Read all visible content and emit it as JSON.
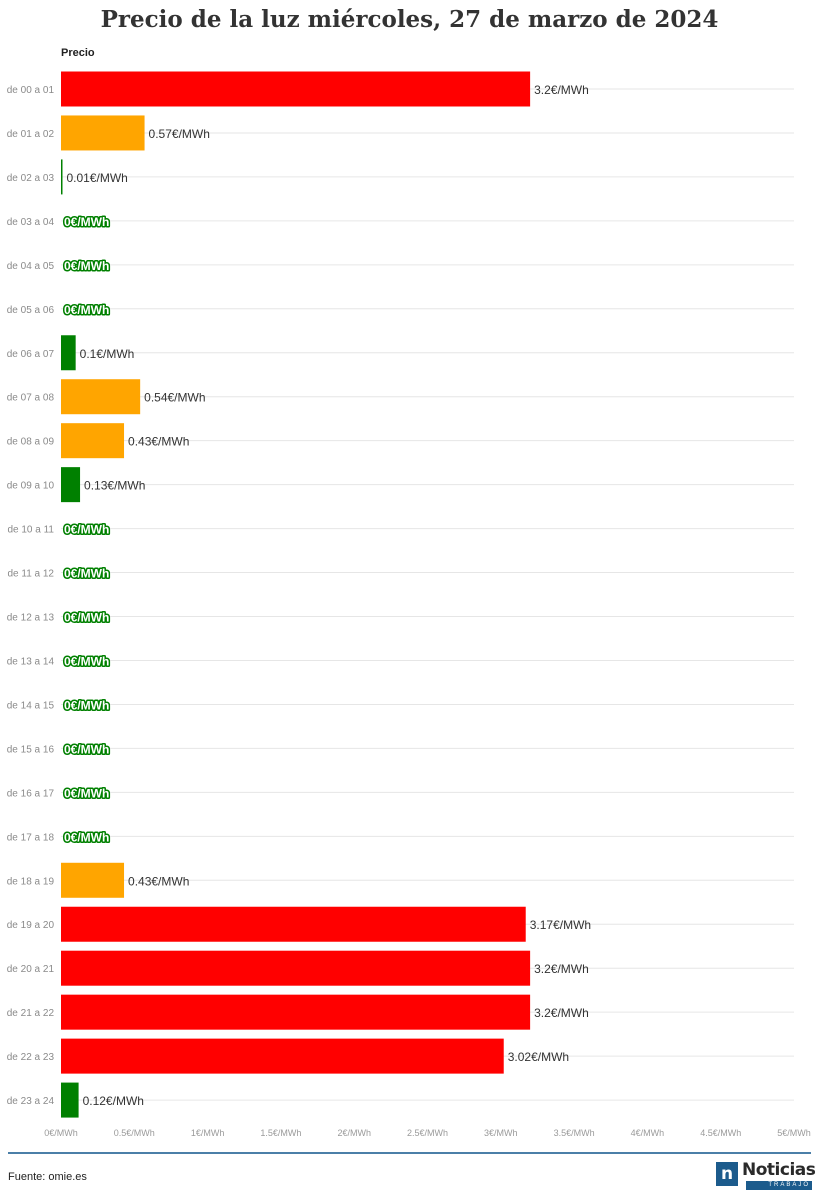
{
  "chart_data": {
    "type": "bar",
    "orientation": "horizontal",
    "title": "Precio de la luz miércoles, 27 de marzo de 2024",
    "series_label": "Precio",
    "unit_suffix": "€/MWh",
    "categories": [
      "de 00 a 01",
      "de 01 a 02",
      "de 02 a 03",
      "de 03 a 04",
      "de 04 a 05",
      "de 05 a 06",
      "de 06 a 07",
      "de 07 a 08",
      "de 08 a 09",
      "de 09 a 10",
      "de 10 a 11",
      "de 11 a 12",
      "de 12 a 13",
      "de 13 a 14",
      "de 14 a 15",
      "de 15 a 16",
      "de 16 a 17",
      "de 17 a 18",
      "de 18 a 19",
      "de 19 a 20",
      "de 20 a 21",
      "de 21 a 22",
      "de 22 a 23",
      "de 23 a 24"
    ],
    "values": [
      3.2,
      0.57,
      0.01,
      0,
      0,
      0,
      0.1,
      0.54,
      0.43,
      0.13,
      0,
      0,
      0,
      0,
      0,
      0,
      0,
      0,
      0.43,
      3.17,
      3.2,
      3.2,
      3.02,
      0.12
    ],
    "data_labels": [
      "3.2€/MWh",
      "0.57€/MWh",
      "0.01€/MWh",
      "0€/MWh",
      "0€/MWh",
      "0€/MWh",
      "0.1€/MWh",
      "0.54€/MWh",
      "0.43€/MWh",
      "0.13€/MWh",
      "0€/MWh",
      "0€/MWh",
      "0€/MWh",
      "0€/MWh",
      "0€/MWh",
      "0€/MWh",
      "0€/MWh",
      "0€/MWh",
      "0.43€/MWh",
      "3.17€/MWh",
      "3.2€/MWh",
      "3.2€/MWh",
      "3.02€/MWh",
      "0.12€/MWh"
    ],
    "bar_colors": [
      "#ff0000",
      "#ffa500",
      "#008000",
      "#008000",
      "#008000",
      "#008000",
      "#008000",
      "#ffa500",
      "#ffa500",
      "#008000",
      "#008000",
      "#008000",
      "#008000",
      "#008000",
      "#008000",
      "#008000",
      "#008000",
      "#008000",
      "#ffa500",
      "#ff0000",
      "#ff0000",
      "#ff0000",
      "#ff0000",
      "#008000"
    ],
    "xlim": [
      0,
      5
    ],
    "x_ticks": [
      0,
      0.5,
      1,
      1.5,
      2,
      2.5,
      3,
      3.5,
      4,
      4.5,
      5
    ],
    "x_tick_labels": [
      "0€/MWh",
      "0.5€/MWh",
      "1€/MWh",
      "1.5€/MWh",
      "2€/MWh",
      "2.5€/MWh",
      "3€/MWh",
      "3.5€/MWh",
      "4€/MWh",
      "4.5€/MWh",
      "5€/MWh"
    ],
    "grid": true,
    "legend": false
  },
  "footer": {
    "source": "Fuente: omie.es",
    "logo_name": "Noticias",
    "logo_sub": "TRABAJO",
    "logo_mark": "n"
  },
  "colors": {
    "high": "#ff0000",
    "medium": "#ffa500",
    "low": "#008000",
    "brand": "#1c5b8c"
  }
}
